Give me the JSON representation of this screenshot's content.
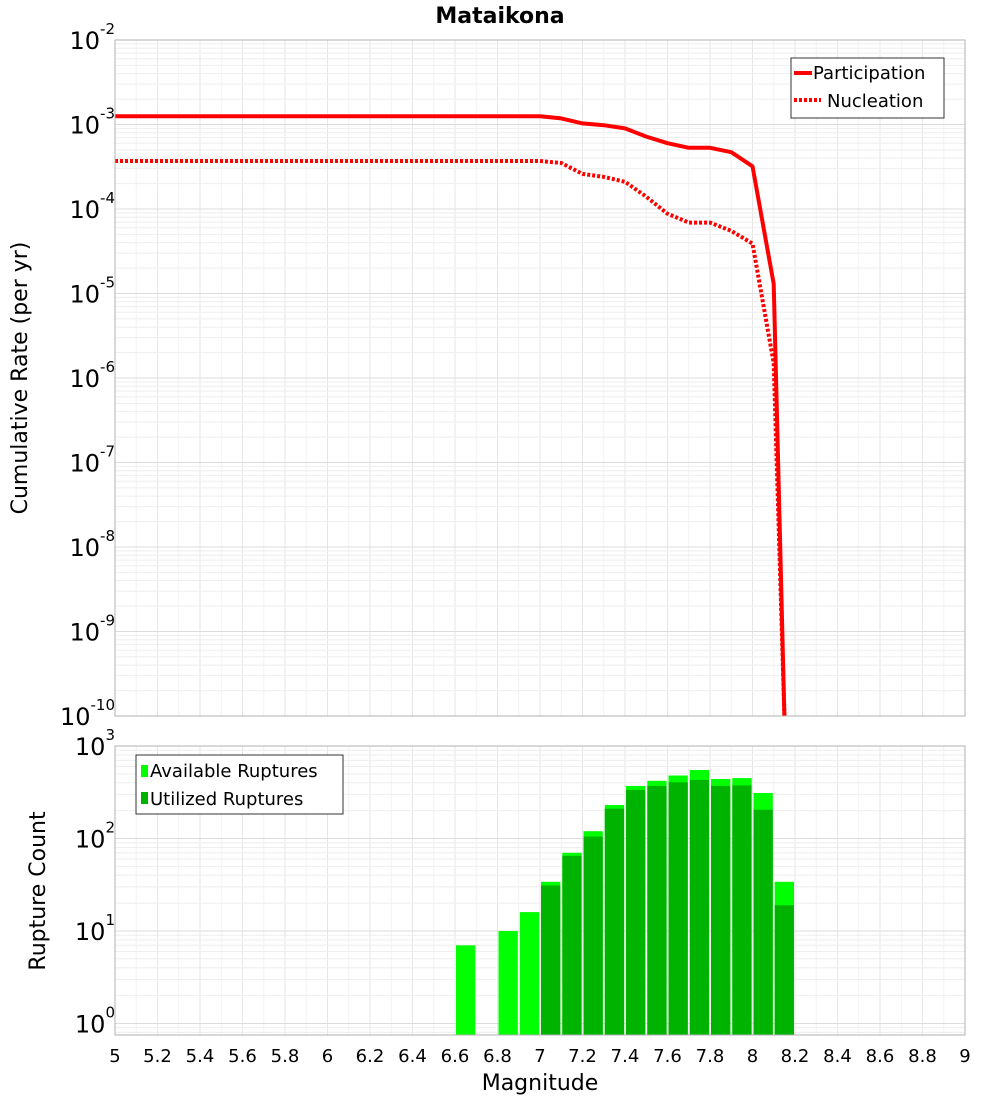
{
  "chart_data": [
    {
      "type": "line",
      "title": "Mataikona",
      "xlabel": "",
      "ylabel": "Cumulative Rate (per yr)",
      "xlim": [
        5,
        9
      ],
      "ylim": [
        1e-10,
        0.01
      ],
      "yscale": "log",
      "y_exponent_labels": [
        "-10",
        "-9",
        "-8",
        "-7",
        "-6",
        "-5",
        "-4",
        "-3",
        "-2"
      ],
      "y_base_label": "10",
      "grid": true,
      "legend_placement": "top-right",
      "colors": {
        "line": "#ff0000"
      },
      "series": [
        {
          "name": "Participation",
          "style": "solid",
          "x": [
            5.0,
            7.0,
            7.1,
            7.2,
            7.3,
            7.4,
            7.5,
            7.6,
            7.7,
            7.8,
            7.9,
            8.0,
            8.1,
            8.15
          ],
          "y": [
            0.00125,
            0.00125,
            0.00118,
            0.00103,
            0.00098,
            0.0009,
            0.00072,
            0.0006,
            0.00053,
            0.00053,
            0.00047,
            0.00032,
            1.3e-05,
            1e-10
          ]
        },
        {
          "name": "Nucleation",
          "style": "dotted",
          "x": [
            5.0,
            7.0,
            7.1,
            7.2,
            7.3,
            7.4,
            7.5,
            7.6,
            7.7,
            7.8,
            7.9,
            8.0,
            8.1,
            8.15
          ],
          "y": [
            0.00037,
            0.00037,
            0.00035,
            0.00026,
            0.00024,
            0.00021,
            0.00014,
            8.8e-05,
            6.9e-05,
            6.9e-05,
            5.5e-05,
            3.9e-05,
            1.5e-06,
            1e-10
          ]
        }
      ]
    },
    {
      "type": "bar",
      "title": "",
      "xlabel": "Magnitude",
      "ylabel": "Rupture Count",
      "xlim": [
        5,
        9
      ],
      "ylim": [
        0.75,
        1000
      ],
      "yscale": "log",
      "y_exponent_labels": [
        "0",
        "1",
        "2",
        "3"
      ],
      "y_base_label": "10",
      "x_tick_labels": [
        "5",
        "5.2",
        "5.4",
        "5.6",
        "5.8",
        "6",
        "6.2",
        "6.4",
        "6.6",
        "6.8",
        "7",
        "7.2",
        "7.4",
        "7.6",
        "7.8",
        "8",
        "8.2",
        "8.4",
        "8.6",
        "8.8",
        "9"
      ],
      "grid": true,
      "legend_placement": "top-left",
      "colors": {
        "available": "#00ff00",
        "utilized": "#00b300"
      },
      "bin_width": 0.1,
      "series": [
        {
          "name": "Available Ruptures",
          "x": [
            6.65,
            6.85,
            6.95,
            7.05,
            7.15,
            7.25,
            7.35,
            7.45,
            7.55,
            7.65,
            7.75,
            7.85,
            7.95,
            8.05,
            8.15
          ],
          "values": [
            7,
            10,
            16,
            34,
            70,
            120,
            230,
            370,
            420,
            480,
            550,
            440,
            450,
            310,
            34
          ]
        },
        {
          "name": "Utilized Ruptures",
          "x": [
            6.65,
            6.85,
            6.95,
            7.05,
            7.15,
            7.25,
            7.35,
            7.45,
            7.55,
            7.65,
            7.75,
            7.85,
            7.95,
            8.05,
            8.15
          ],
          "values": [
            0,
            0,
            0,
            31,
            65,
            105,
            210,
            335,
            370,
            405,
            430,
            370,
            375,
            205,
            19
          ]
        }
      ]
    }
  ]
}
